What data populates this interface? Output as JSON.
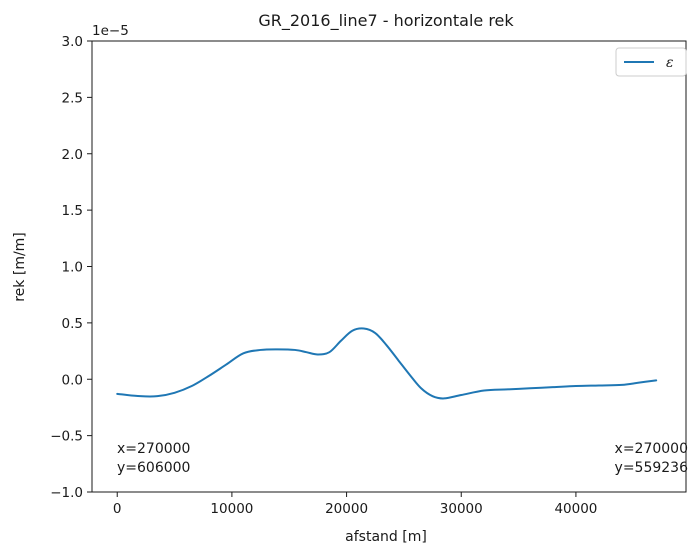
{
  "chart_data": {
    "type": "line",
    "title": "GR_2016_line7 - horizontale rek",
    "xlabel": "afstand [m]",
    "ylabel": "rek [m/m]",
    "y_offset_text": "1e−5",
    "xlim": [
      -2200,
      49600
    ],
    "ylim": [
      -1.0,
      3.0
    ],
    "x_ticks": [
      0,
      10000,
      20000,
      30000,
      40000
    ],
    "x_tick_labels": [
      "0",
      "10000",
      "20000",
      "30000",
      "40000"
    ],
    "y_ticks": [
      -1.0,
      -0.5,
      0.0,
      0.5,
      1.0,
      1.5,
      2.0,
      2.5,
      3.0
    ],
    "y_tick_labels": [
      "−1.0",
      "−0.5",
      "0.0",
      "0.5",
      "1.0",
      "1.5",
      "2.0",
      "2.5",
      "3.0"
    ],
    "grid": false,
    "legend_position": "top-right",
    "series": [
      {
        "name": "ε",
        "color": "#1f77b4",
        "x": [
          0,
          2000,
          3500,
          5000,
          6500,
          8000,
          9500,
          11000,
          12500,
          14000,
          15500,
          16500,
          17500,
          18500,
          19500,
          20500,
          21500,
          22500,
          23500,
          24500,
          25500,
          26500,
          27500,
          28500,
          30000,
          32000,
          34000,
          36000,
          38000,
          40000,
          42000,
          44000,
          45500,
          47000
        ],
        "y": [
          -0.13,
          -0.15,
          -0.15,
          -0.12,
          -0.06,
          0.03,
          0.13,
          0.23,
          0.26,
          0.265,
          0.26,
          0.24,
          0.22,
          0.24,
          0.34,
          0.43,
          0.45,
          0.41,
          0.3,
          0.17,
          0.04,
          -0.08,
          -0.15,
          -0.17,
          -0.14,
          -0.1,
          -0.09,
          -0.08,
          -0.07,
          -0.06,
          -0.055,
          -0.05,
          -0.03,
          -0.01
        ]
      }
    ],
    "annotations": {
      "left_x": "x=270000",
      "left_y": "y=606000",
      "right_x": "x=270000",
      "right_y": "y=559236"
    }
  }
}
